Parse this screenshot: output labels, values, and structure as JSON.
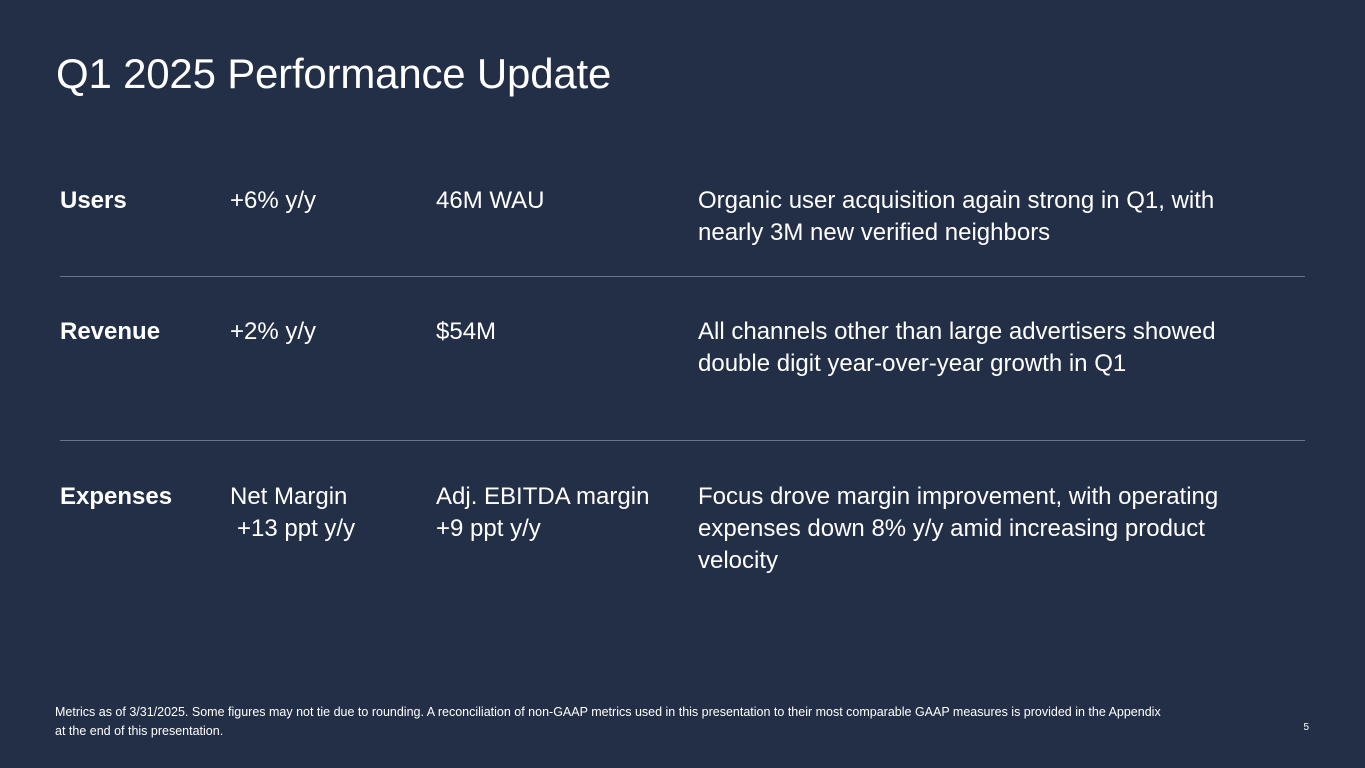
{
  "slide": {
    "title": "Q1 2025 Performance Update",
    "page_number": "5"
  },
  "rows": [
    {
      "label": "Users",
      "metric1": [
        "+6% y/y"
      ],
      "metric2": [
        "46M WAU"
      ],
      "description": [
        "Organic user acquisition again strong in Q1, with",
        "nearly 3M new verified neighbors"
      ]
    },
    {
      "label": "Revenue",
      "metric1": [
        "+2% y/y"
      ],
      "metric2": [
        "$54M"
      ],
      "description": [
        "All channels other than large advertisers showed",
        "double digit year-over-year growth in Q1"
      ]
    },
    {
      "label": "Expenses",
      "metric1": [
        "Net Margin",
        "+13 ppt y/y"
      ],
      "metric2": [
        "Adj. EBITDA margin",
        "+9 ppt y/y"
      ],
      "description": [
        "Focus drove margin improvement, with operating",
        "expenses down 8% y/y amid increasing product",
        "velocity"
      ]
    }
  ],
  "footnote": {
    "line1": "Metrics as of 3/31/2025. Some figures may not tie due to rounding. A reconciliation of non-GAAP metrics used in this presentation to their most comparable GAAP measures is provided in the Appendix",
    "line2": "at the end of this presentation."
  }
}
